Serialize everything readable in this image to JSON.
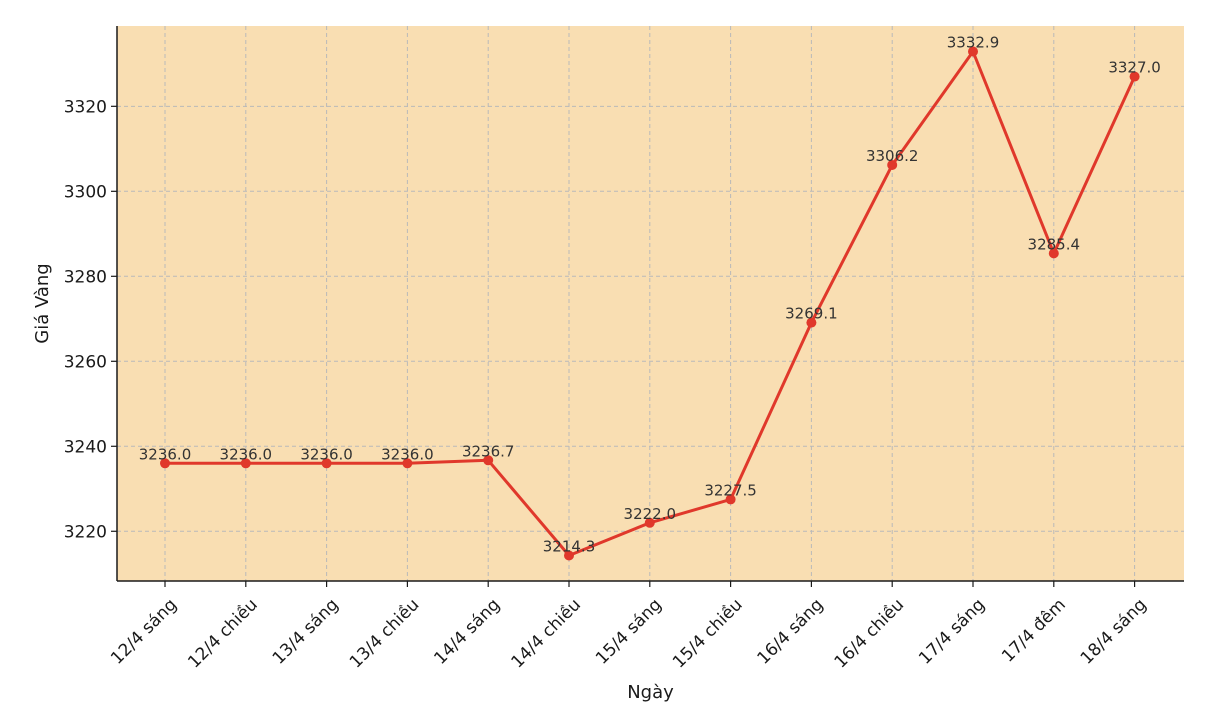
{
  "chart_data": {
    "type": "line",
    "title": "",
    "xlabel": "Ngày",
    "ylabel": "Giá Vàng",
    "categories": [
      "12/4 sáng",
      "12/4 chiều",
      "13/4 sáng",
      "13/4 chiều",
      "14/4 sáng",
      "14/4 chiều",
      "15/4 sáng",
      "15/4 chiều",
      "16/4 sáng",
      "16/4 chiều",
      "17/4 sáng",
      "17/4 đêm",
      "18/4 sáng"
    ],
    "series": [
      {
        "values": [
          3236.0,
          3236.0,
          3236.0,
          3236.0,
          3236.7,
          3214.3,
          3222.0,
          3227.5,
          3269.1,
          3306.2,
          3332.9,
          3285.4,
          3327.0
        ],
        "data_labels": [
          "3236.0",
          "3236.0",
          "3236.0",
          "3236.0",
          "3236.7",
          "3214.3",
          "3222.0",
          "3227.5",
          "3269.1",
          "3306.2",
          "3332.9",
          "3285.4",
          "3327.0"
        ],
        "color": "#e0382b"
      }
    ],
    "ylim": [
      3208.3,
      3338.9
    ],
    "yticks": [
      3220,
      3240,
      3260,
      3280,
      3300,
      3320
    ],
    "ytick_labels": [
      "3220",
      "3240",
      "3260",
      "3280",
      "3300",
      "3320"
    ],
    "grid": true,
    "legend": "none",
    "plot_background": "#f9deb2"
  }
}
